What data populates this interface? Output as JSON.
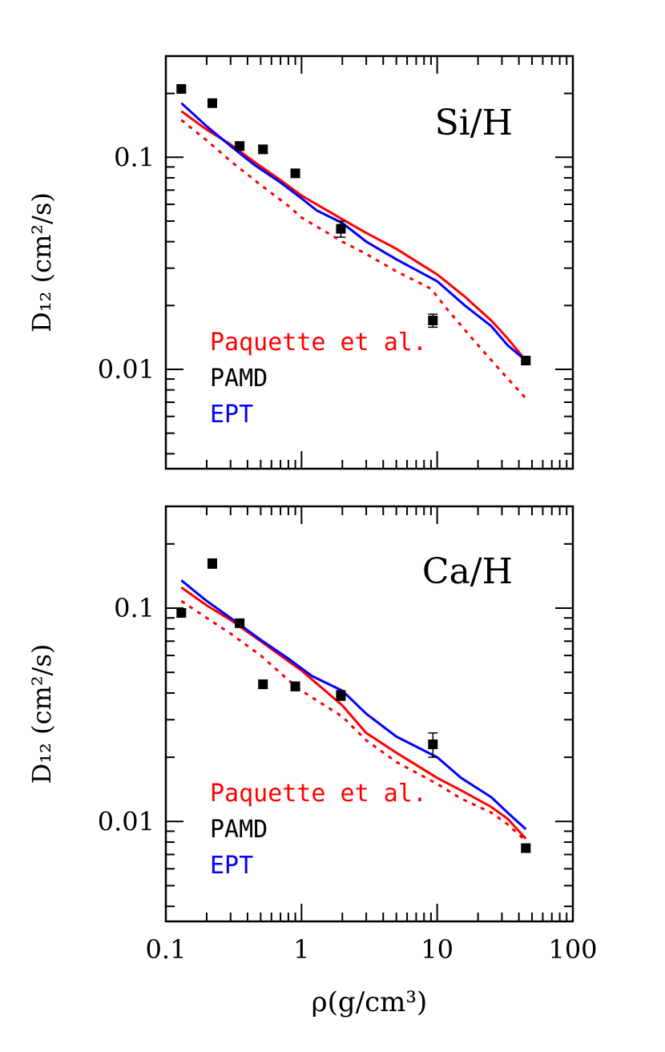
{
  "chart_data": [
    {
      "type": "line",
      "panel_label": "Si/H",
      "ylabel": "D₁₂ (cm²/s)",
      "xlabel": "",
      "xscale": "log",
      "yscale": "log",
      "xlim": [
        0.1,
        100
      ],
      "ylim": [
        0.0034,
        0.3
      ],
      "x_tick_labels": [],
      "y_tick_labels": [
        "0.1",
        "0.01"
      ],
      "y_tick_values": [
        0.1,
        0.01
      ],
      "legend_position": "bottom-left",
      "legend": [
        {
          "label": "Paquette et al.",
          "color": "#ff0000"
        },
        {
          "label": "PAMD",
          "color": "#000000"
        },
        {
          "label": "EPT",
          "color": "#0000ff"
        }
      ],
      "series": [
        {
          "style": "solid",
          "color": "#ff0000",
          "x": [
            0.13,
            0.2,
            0.3,
            0.45,
            0.7,
            1.0,
            2.0,
            3.0,
            5.0,
            10.0,
            16.0,
            25.0,
            33.0,
            45.0
          ],
          "y": [
            0.165,
            0.135,
            0.115,
            0.095,
            0.078,
            0.066,
            0.051,
            0.044,
            0.037,
            0.028,
            0.022,
            0.017,
            0.014,
            0.011
          ]
        },
        {
          "style": "solid",
          "color": "#0000ff",
          "x": [
            0.13,
            0.2,
            0.3,
            0.45,
            0.7,
            1.0,
            1.3,
            2.0,
            3.0,
            5.0,
            10.0,
            16.0,
            25.0,
            33.0,
            45.0
          ],
          "y": [
            0.18,
            0.14,
            0.113,
            0.092,
            0.076,
            0.064,
            0.056,
            0.049,
            0.04,
            0.033,
            0.026,
            0.02,
            0.016,
            0.013,
            0.011
          ]
        },
        {
          "style": "dashed",
          "color": "#ff0000",
          "x": [
            0.13,
            0.2,
            0.3,
            0.5,
            0.8,
            1.0,
            2.0,
            3.0,
            5.0,
            9.0,
            12.0,
            20.0,
            30.0,
            45.0
          ],
          "y": [
            0.15,
            0.12,
            0.096,
            0.074,
            0.059,
            0.052,
            0.04,
            0.035,
            0.029,
            0.024,
            0.019,
            0.013,
            0.0097,
            0.0073
          ]
        },
        {
          "style": "points",
          "color": "#000000",
          "name": "PAMD",
          "x": [
            0.13,
            0.22,
            0.35,
            0.52,
            0.9,
            1.95,
            9.3,
            45.0
          ],
          "y": [
            0.21,
            0.18,
            0.113,
            0.109,
            0.084,
            0.046,
            0.017,
            0.011
          ],
          "yerr": [
            0.006,
            0.006,
            0.005,
            0.004,
            0.003,
            0.004,
            0.0012,
            0.0004
          ]
        }
      ]
    },
    {
      "type": "line",
      "panel_label": "Ca/H",
      "ylabel": "D₁₂ (cm²/s)",
      "xlabel": "ρ(g/cm³)",
      "xscale": "log",
      "yscale": "log",
      "xlim": [
        0.1,
        100
      ],
      "ylim": [
        0.0034,
        0.3
      ],
      "x_tick_labels": [
        "0.1",
        "1",
        "10",
        "100"
      ],
      "x_tick_values": [
        0.1,
        1,
        10,
        100
      ],
      "y_tick_labels": [
        "0.1",
        "0.01"
      ],
      "y_tick_values": [
        0.1,
        0.01
      ],
      "legend_position": "bottom-left",
      "legend": [
        {
          "label": "Paquette et al.",
          "color": "#ff0000"
        },
        {
          "label": "PAMD",
          "color": "#000000"
        },
        {
          "label": "EPT",
          "color": "#0000ff"
        }
      ],
      "series": [
        {
          "style": "solid",
          "color": "#ff0000",
          "x": [
            0.13,
            0.2,
            0.3,
            0.5,
            0.7,
            1.0,
            2.0,
            3.0,
            5.0,
            10.0,
            15.0,
            25.0,
            33.0,
            45.0
          ],
          "y": [
            0.125,
            0.103,
            0.088,
            0.07,
            0.06,
            0.051,
            0.035,
            0.026,
            0.021,
            0.016,
            0.014,
            0.0117,
            0.0103,
            0.0083
          ]
        },
        {
          "style": "solid",
          "color": "#0000ff",
          "x": [
            0.13,
            0.2,
            0.3,
            0.5,
            0.8,
            1.2,
            2.0,
            3.0,
            5.0,
            10.0,
            15.0,
            25.0,
            33.0,
            45.0
          ],
          "y": [
            0.135,
            0.108,
            0.09,
            0.071,
            0.058,
            0.048,
            0.041,
            0.032,
            0.025,
            0.02,
            0.016,
            0.013,
            0.011,
            0.0092
          ]
        },
        {
          "style": "dashed",
          "color": "#ff0000",
          "x": [
            0.13,
            0.2,
            0.3,
            0.5,
            0.8,
            1.0,
            2.0,
            3.0,
            5.0,
            10.0,
            15.0,
            25.0,
            33.0,
            45.0
          ],
          "y": [
            0.108,
            0.09,
            0.076,
            0.06,
            0.046,
            0.041,
            0.031,
            0.024,
            0.019,
            0.015,
            0.0128,
            0.011,
            0.0097,
            0.0081
          ]
        },
        {
          "style": "points",
          "color": "#000000",
          "name": "PAMD",
          "x": [
            0.13,
            0.22,
            0.35,
            0.52,
            0.9,
            1.95,
            9.3,
            45.0
          ],
          "y": [
            0.095,
            0.162,
            0.085,
            0.044,
            0.043,
            0.039,
            0.023,
            0.0075
          ],
          "yerr": [
            0.004,
            0.008,
            0.003,
            0.002,
            0.002,
            0.002,
            0.003,
            0.0003
          ]
        }
      ]
    }
  ]
}
